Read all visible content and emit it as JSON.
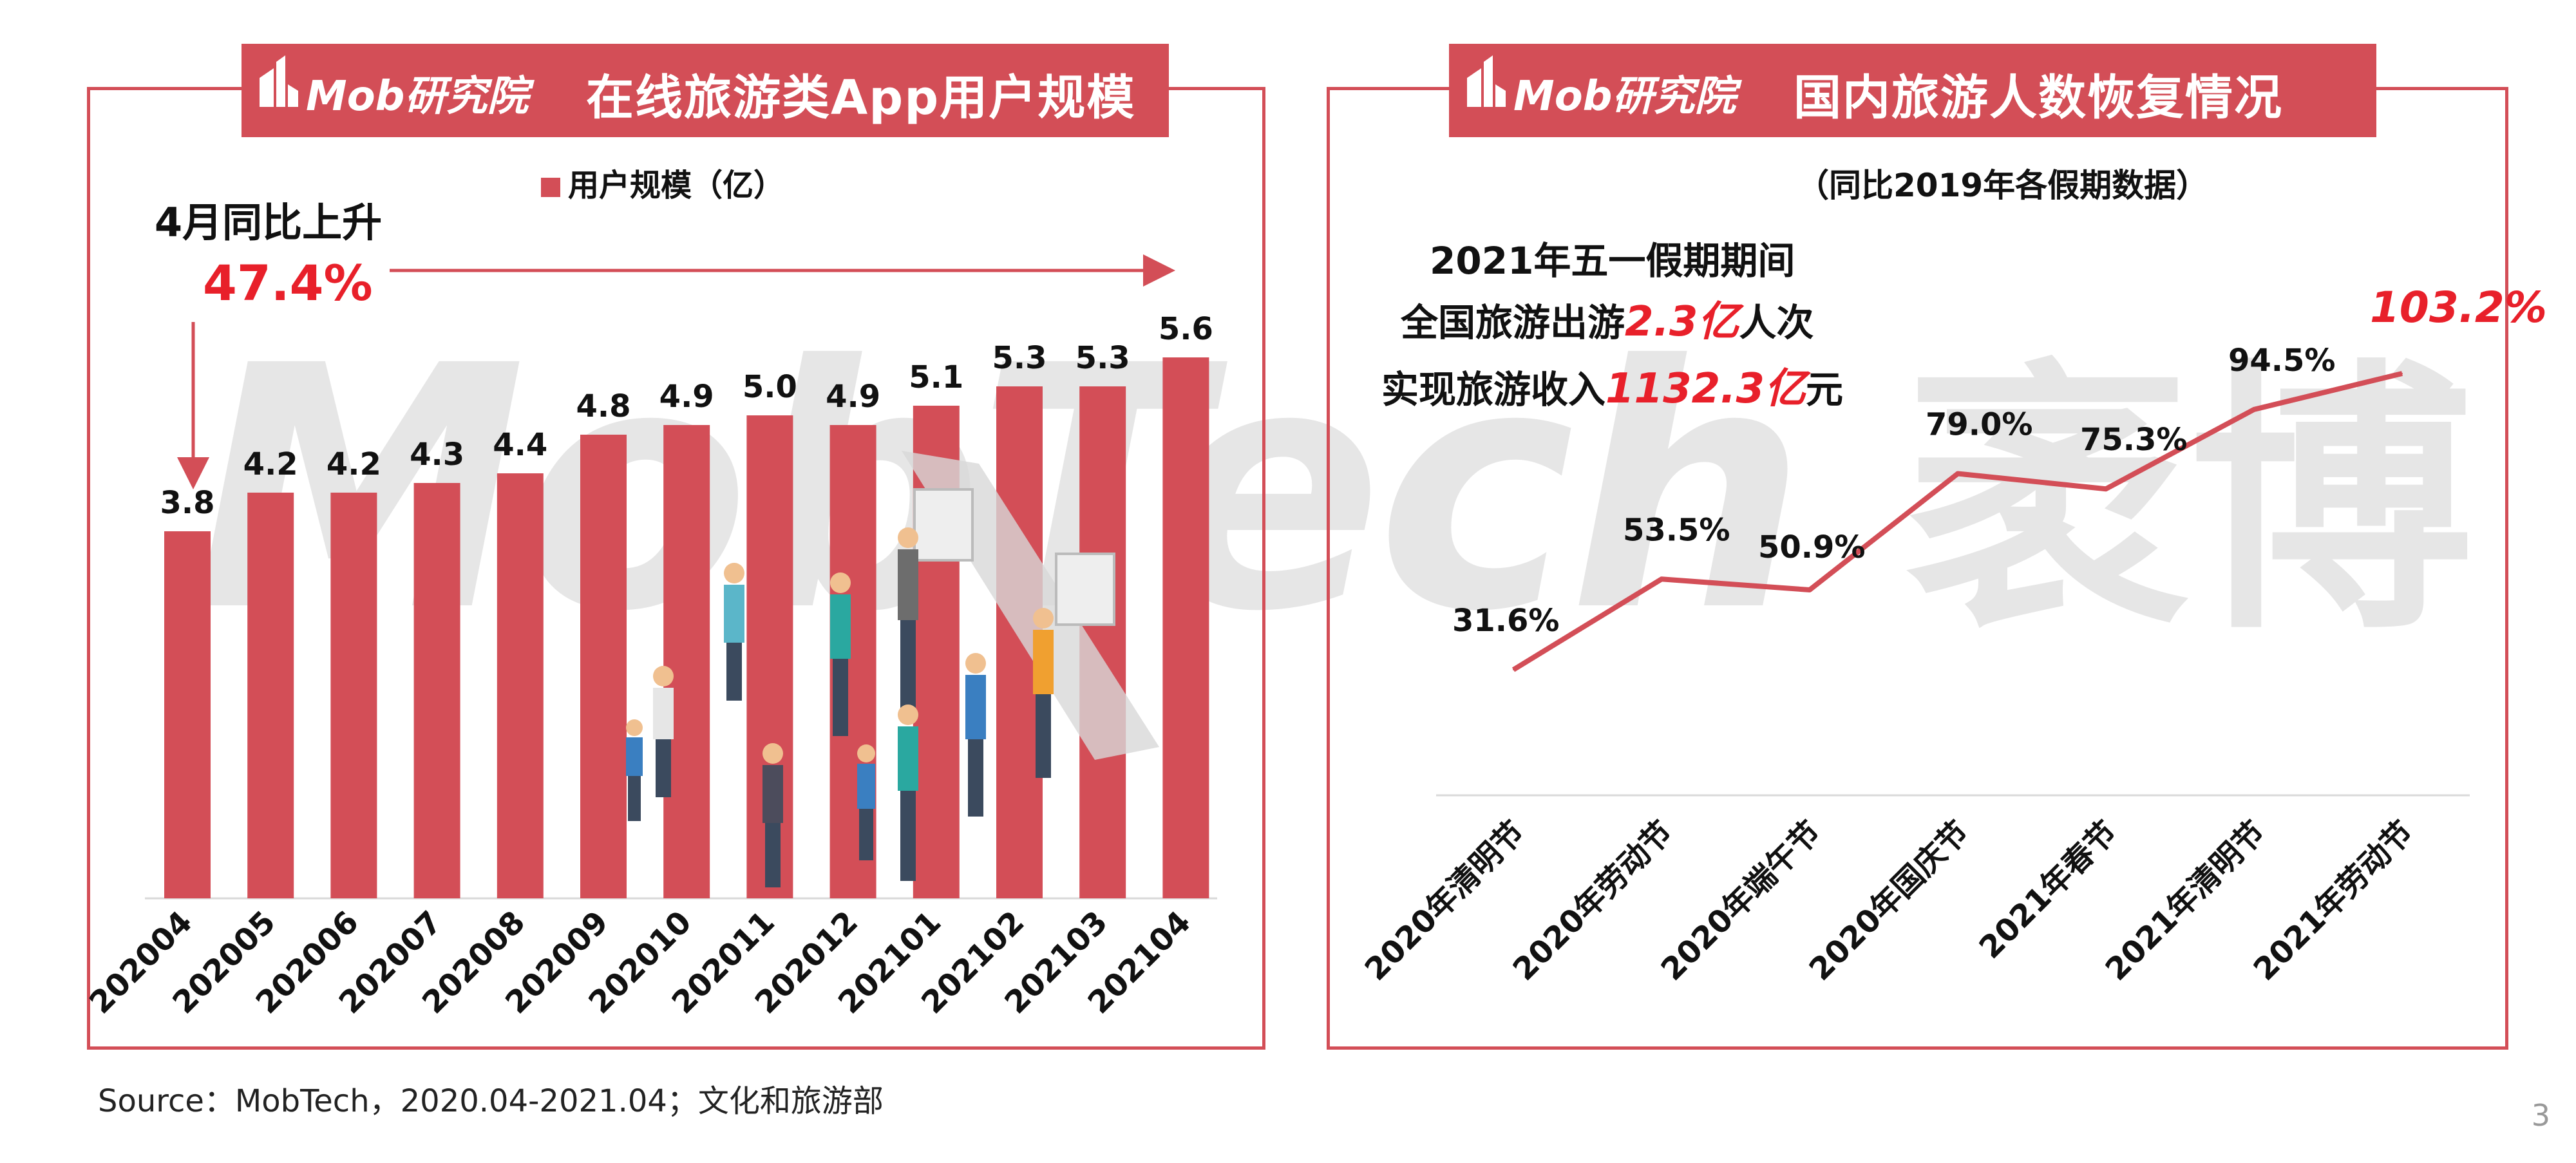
{
  "colors": {
    "brand": "#d34e57",
    "highlight": "#e8202a",
    "line": "#d34e57",
    "watermark": "#e6e6e6"
  },
  "watermark": {
    "text": "MobTech",
    "cn": "袤博"
  },
  "left_panel": {
    "logo": "Mob研究院",
    "title": "在线旅游类App用户规模",
    "legend": "用户规模（亿）",
    "callout_line1": "4月同比上升",
    "callout_value": "47.4%"
  },
  "right_panel": {
    "logo": "Mob研究院",
    "title": "国内旅游人数恢复情况",
    "subtitle": "（同比2019年各假期数据）",
    "callout_line1": "2021年五一假期期间",
    "callout_line2_pre": "全国旅游出游",
    "callout_line2_val": "2.3亿",
    "callout_line2_post": "人次",
    "callout_line3_pre": "实现旅游收入",
    "callout_line3_val": "1132.3亿",
    "callout_line3_post": "元"
  },
  "chart_data": [
    {
      "type": "bar",
      "title": "在线旅游类App用户规模",
      "categories": [
        "202004",
        "202005",
        "202006",
        "202007",
        "202008",
        "202009",
        "202010",
        "202011",
        "202012",
        "202101",
        "202102",
        "202103",
        "202104"
      ],
      "series": [
        {
          "name": "用户规模（亿）",
          "values": [
            3.8,
            4.2,
            4.2,
            4.3,
            4.4,
            4.8,
            4.9,
            5.0,
            4.9,
            5.1,
            5.3,
            5.3,
            5.6
          ]
        }
      ],
      "data_labels": [
        "3.8",
        "4.2",
        "4.2",
        "4.3",
        "4.4",
        "4.8",
        "4.9",
        "5.0",
        "4.9",
        "5.1",
        "5.3",
        "5.3",
        "5.6"
      ],
      "legend_position": "top",
      "grid": false
    },
    {
      "type": "line",
      "title": "国内旅游人数恢复情况",
      "categories": [
        "2020年清明节",
        "2020年劳动节",
        "2020年端午节",
        "2020年国庆节",
        "2021年春节",
        "2021年清明节",
        "2021年劳动节"
      ],
      "series": [
        {
          "values": [
            31.6,
            53.5,
            50.9,
            79.0,
            75.3,
            94.5,
            103.2
          ]
        }
      ],
      "data_labels": [
        "31.6%",
        "53.5%",
        "50.9%",
        "79.0%",
        "75.3%",
        "94.5%",
        "103.2%"
      ],
      "grid": false
    }
  ],
  "footer": {
    "source": "Source：MobTech，2020.04-2021.04；文化和旅游部",
    "page": "3"
  }
}
